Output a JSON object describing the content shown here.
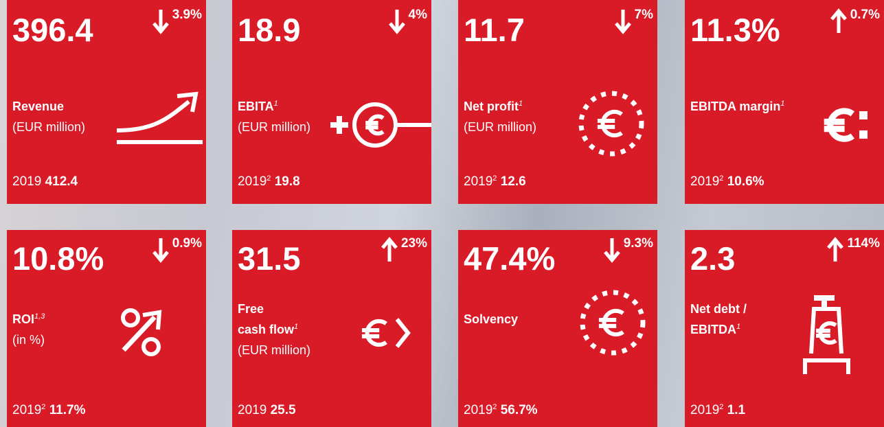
{
  "tiles": [
    {
      "value": "396.4",
      "change": "3.9%",
      "direction": "down",
      "label": [
        "Revenue"
      ],
      "unit": "(EUR million)",
      "prior_year": "2019",
      "prior_value": "412.4"
    },
    {
      "value": "18.9",
      "change": "4%",
      "direction": "down",
      "label": [
        "EBITA"
      ],
      "label_sup": "1",
      "unit": "(EUR million)",
      "prior_year": "2019",
      "prior_sup": "2",
      "prior_value": "19.8"
    },
    {
      "value": "11.7",
      "change": "7%",
      "direction": "down",
      "label": [
        "Net profit"
      ],
      "label_sup": "1",
      "unit": "(EUR million)",
      "prior_year": "2019",
      "prior_sup": "2",
      "prior_value": "12.6"
    },
    {
      "value": "11.3%",
      "change": "0.7%",
      "direction": "up",
      "label": [
        "EBITDA margin"
      ],
      "label_sup": "1",
      "prior_year": "2019",
      "prior_sup": "2",
      "prior_value": "10.6%"
    },
    {
      "value": "10.8%",
      "change": "0.9%",
      "direction": "down",
      "label": [
        "ROI"
      ],
      "label_sup": "1,3",
      "unit": "(in %)",
      "prior_year": "2019",
      "prior_sup": "2",
      "prior_value": "11.7%"
    },
    {
      "value": "31.5",
      "change": "23%",
      "direction": "up",
      "label": [
        "Free",
        "cash flow"
      ],
      "label_sup": "1",
      "unit": "(EUR million)",
      "prior_year": "2019",
      "prior_value": "25.5"
    },
    {
      "value": "47.4%",
      "change": "9.3%",
      "direction": "down",
      "label": [
        "Solvency"
      ],
      "prior_year": "2019",
      "prior_sup": "2",
      "prior_value": "56.7%"
    },
    {
      "value": "2.3",
      "change": "114%",
      "direction": "up",
      "label": [
        "Net debt /",
        "EBITDA"
      ],
      "label_sup": "1",
      "prior_year": "2019",
      "prior_sup": "2",
      "prior_value": "1.1"
    }
  ]
}
